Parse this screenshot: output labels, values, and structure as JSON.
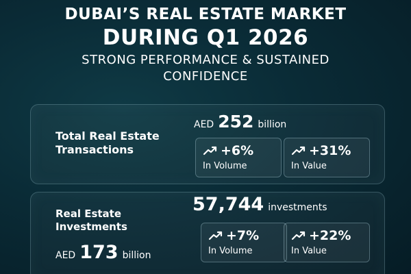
{
  "header": {
    "line1": "DUBAI’S REAL ESTATE MARKET",
    "line2": "DURING Q1 2026",
    "line3a": "STRONG PERFORMANCE & SUSTAINED",
    "line3b": "CONFIDENCE"
  },
  "transactions": {
    "label_line1": "Total Real Estate",
    "label_line2": "Transactions",
    "currency": "AED",
    "amount": "252",
    "unit": "billion",
    "stats": [
      {
        "icon": "trend-up-icon",
        "value": "+6%",
        "caption": "In Volume"
      },
      {
        "icon": "trend-up-icon",
        "value": "+31%",
        "caption": "In Value"
      }
    ]
  },
  "investments": {
    "label_line1": "Real Estate",
    "label_line2": "Investments",
    "count": "57,744",
    "count_unit": "investments",
    "currency": "AED",
    "amount": "173",
    "unit": "billion",
    "stats": [
      {
        "icon": "trend-up-icon",
        "value": "+7%",
        "caption": "In Volume"
      },
      {
        "icon": "trend-up-icon",
        "value": "+22%",
        "caption": "In Value"
      }
    ]
  }
}
